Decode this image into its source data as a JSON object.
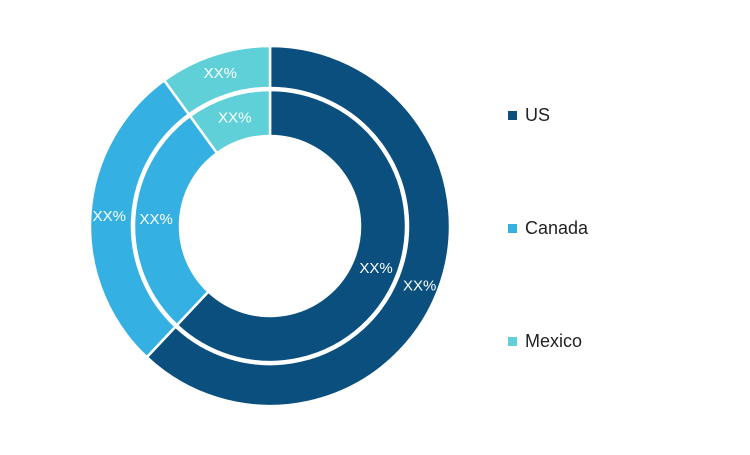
{
  "chart_data": {
    "type": "pie",
    "style": "double-donut",
    "series": [
      {
        "ring": "outer",
        "values": [
          62,
          28,
          10
        ],
        "labels": [
          "XX%",
          "XX%",
          "XX%"
        ]
      },
      {
        "ring": "inner",
        "values": [
          62,
          28,
          10
        ],
        "labels": [
          "XX%",
          "XX%",
          "XX%"
        ]
      }
    ],
    "categories": [
      "US",
      "Canada",
      "Mexico"
    ],
    "colors": [
      "#0b4f7f",
      "#35b0e3",
      "#5fd0d8"
    ],
    "legend_position": "right",
    "title": ""
  },
  "legend": {
    "items": [
      {
        "label": "US",
        "color": "#0b4f7f"
      },
      {
        "label": "Canada",
        "color": "#35b0e3"
      },
      {
        "label": "Mexico",
        "color": "#5fd0d8"
      }
    ]
  }
}
